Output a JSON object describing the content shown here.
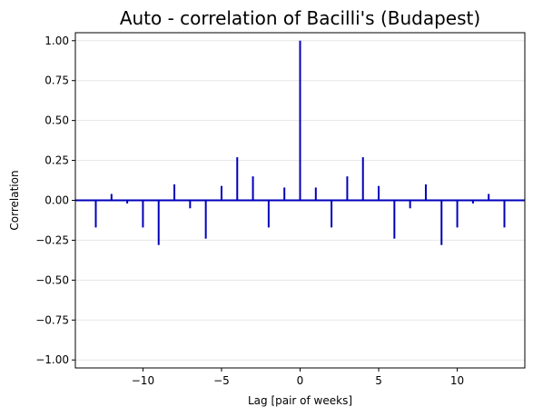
{
  "chart_data": {
    "type": "bar",
    "title": "Auto - correlation of Bacilli's (Budapest)",
    "xlabel": "Lag [pair of weeks]",
    "ylabel": "Correlation",
    "xlim": [
      -14.3,
      14.3
    ],
    "ylim": [
      -1.05,
      1.05
    ],
    "xticks": [
      -10,
      -5,
      0,
      5,
      10
    ],
    "xtick_labels": [
      "−10",
      "−5",
      "0",
      "5",
      "10"
    ],
    "yticks": [
      1.0,
      0.75,
      0.5,
      0.25,
      0.0,
      -0.25,
      -0.5,
      -0.75,
      -1.0
    ],
    "ytick_labels": [
      "1.00",
      "0.75",
      "0.50",
      "0.25",
      "0.00",
      "−0.25",
      "−0.50",
      "−0.75",
      "−1.00"
    ],
    "grid": "horizontal",
    "color": "#0000bb",
    "lags": [
      -13,
      -12,
      -11,
      -10,
      -9,
      -8,
      -7,
      -6,
      -5,
      -4,
      -3,
      -2,
      -1,
      0,
      1,
      2,
      3,
      4,
      5,
      6,
      7,
      8,
      9,
      10,
      11,
      12,
      13
    ],
    "values": [
      -0.17,
      0.04,
      -0.02,
      -0.17,
      -0.28,
      0.1,
      -0.05,
      -0.24,
      0.09,
      0.27,
      0.15,
      -0.17,
      0.08,
      1.0,
      0.08,
      -0.17,
      0.15,
      0.27,
      0.09,
      -0.24,
      -0.05,
      0.1,
      -0.28,
      -0.17,
      -0.02,
      0.04,
      -0.17
    ]
  }
}
